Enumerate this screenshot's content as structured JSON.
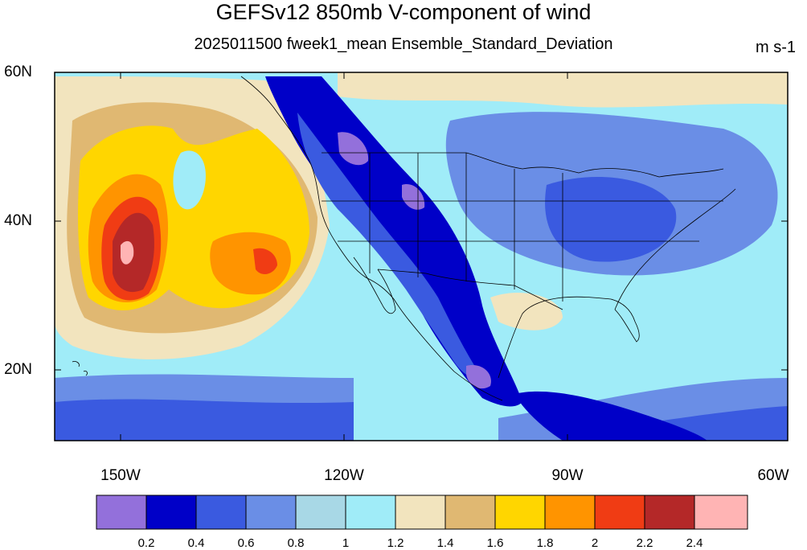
{
  "title": "GEFSv12 850mb V-component of wind",
  "subtitle": "2025011500 fweek1_mean Ensemble_Standard_Deviation",
  "units": "m s-1",
  "latitude_labels": [
    "60N",
    "40N",
    "20N"
  ],
  "longitude_labels": [
    "150W",
    "120W",
    "90W",
    "60W"
  ],
  "colorbar": {
    "labels": [
      "0.2",
      "0.4",
      "0.6",
      "0.8",
      "1",
      "1.2",
      "1.4",
      "1.6",
      "1.8",
      "2",
      "2.2",
      "2.4"
    ],
    "colors": [
      "#9370db",
      "#0000c8",
      "#3a5ae0",
      "#6a8ee6",
      "#a8d8e6",
      "#a0ecf8",
      "#f2e4be",
      "#e0b872",
      "#ffd600",
      "#ff9400",
      "#f03c14",
      "#b42828",
      "#ffb4b4"
    ]
  },
  "map": {
    "lat_range": [
      "10N",
      "60N"
    ],
    "lon_range": [
      "162W",
      "60W"
    ],
    "features": [
      "continent outlines",
      "US state boundaries",
      "Mexico state boundaries"
    ]
  }
}
